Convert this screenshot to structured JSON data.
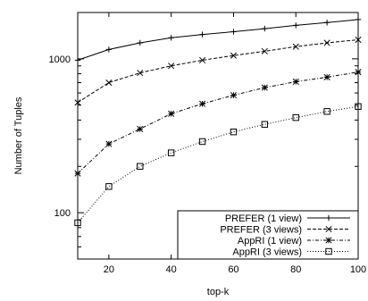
{
  "chart_data": {
    "type": "line",
    "title": "",
    "xlabel": "top-k",
    "ylabel": "Number of Tuples",
    "y_scale": "log",
    "xlim": [
      10,
      100
    ],
    "ylim": [
      50,
      2000
    ],
    "x_ticks": [
      20,
      40,
      60,
      80,
      100
    ],
    "y_ticks": [
      100,
      1000
    ],
    "grid": false,
    "legend_position": "bottom-right",
    "x": [
      10,
      20,
      30,
      40,
      50,
      60,
      70,
      80,
      90,
      100
    ],
    "series": [
      {
        "name": "PREFER (1 view)",
        "marker": "plus",
        "dash": "solid",
        "values": [
          980,
          1150,
          1270,
          1370,
          1440,
          1500,
          1570,
          1650,
          1720,
          1800
        ]
      },
      {
        "name": "PREFER (3 views)",
        "marker": "cross",
        "dash": "dashed",
        "values": [
          520,
          700,
          810,
          900,
          980,
          1050,
          1120,
          1200,
          1270,
          1330
        ]
      },
      {
        "name": "AppRI (1 view)",
        "marker": "star",
        "dash": "dotdash",
        "values": [
          180,
          280,
          350,
          440,
          510,
          580,
          650,
          710,
          760,
          820
        ]
      },
      {
        "name": "AppRI (3 views)",
        "marker": "square",
        "dash": "dotted",
        "values": [
          86,
          148,
          200,
          245,
          290,
          335,
          375,
          415,
          455,
          490
        ]
      }
    ]
  }
}
